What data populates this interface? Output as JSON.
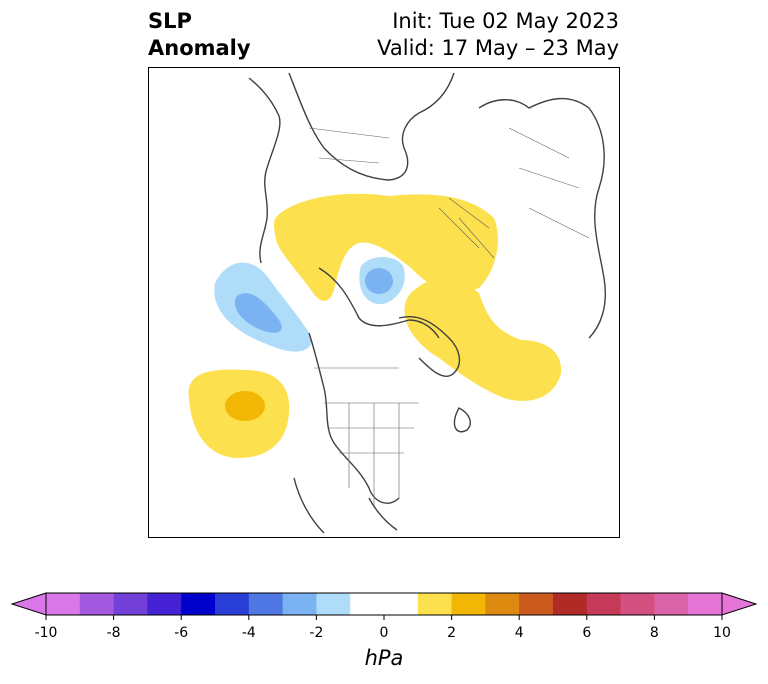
{
  "title": {
    "left_line1": "SLP",
    "left_line2": "Anomaly",
    "right_line1": "Init: Tue 02 May 2023",
    "right_line2": "Valid: 17 May – 23 May"
  },
  "map": {
    "projection": "north-polar-stereographic",
    "anomaly_regions": [
      {
        "name": "north-pacific-high",
        "value_hpa": 2,
        "peak_hpa": 3
      },
      {
        "name": "gulf-of-alaska-low",
        "value_hpa": -2,
        "peak_hpa": -3
      },
      {
        "name": "eurasia-arctic-high",
        "value_hpa": 2
      },
      {
        "name": "arctic-low",
        "value_hpa": -2,
        "peak_hpa": -3
      },
      {
        "name": "greenland-atlantic-high",
        "value_hpa": 2
      }
    ]
  },
  "colorbar": {
    "unit": "hPa",
    "ticks": [
      "-10",
      "-8",
      "-6",
      "-4",
      "-2",
      "0",
      "2",
      "4",
      "6",
      "8",
      "10"
    ],
    "colors": [
      "#d977e8",
      "#a35ae0",
      "#7340d8",
      "#4422d4",
      "#0000cc",
      "#2a3fd8",
      "#4f77e4",
      "#7bb2f2",
      "#aedcf9",
      "#ffffff",
      "#ffffff",
      "#fde04e",
      "#f2b705",
      "#dd8a10",
      "#c95a1c",
      "#b02a26",
      "#c43a58",
      "#d45080",
      "#d965a8",
      "#e675d8"
    ]
  }
}
